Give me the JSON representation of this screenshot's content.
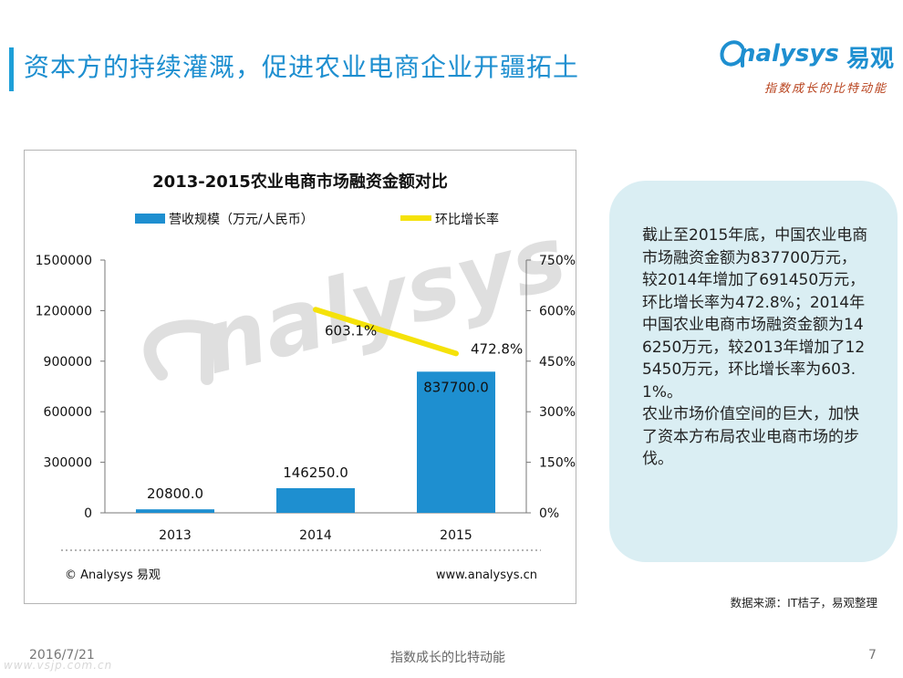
{
  "header": {
    "title": "资本方的持续灌溉，促进农业电商企业开疆拓土",
    "logo_word": "nalysys",
    "logo_cn": "易观",
    "logo_slogan": "指数成长的比特动能"
  },
  "chart_data": {
    "type": "bar",
    "title": "2013-2015农业电商市场融资金额对比",
    "categories": [
      "2013",
      "2014",
      "2015"
    ],
    "series": [
      {
        "name": "营收规模（万元/人民币）",
        "kind": "bar",
        "axis": "left",
        "values": [
          20800.0,
          146250.0,
          837700.0
        ],
        "labels": [
          "20800.0",
          "146250.0",
          "837700.0"
        ],
        "color": "#1e8fd0"
      },
      {
        "name": "环比增长率",
        "kind": "line",
        "axis": "right",
        "values": [
          null,
          603.1,
          472.8
        ],
        "labels": [
          "",
          "603.1%",
          "472.8%"
        ],
        "color": "#f5e20a"
      }
    ],
    "y_left": {
      "lim": [
        0,
        1500000
      ],
      "ticks": [
        "0",
        "300000",
        "600000",
        "900000",
        "1200000",
        "1500000"
      ]
    },
    "y_right": {
      "lim": [
        0,
        750
      ],
      "ticks": [
        "0%",
        "150%",
        "300%",
        "450%",
        "600%",
        "750%"
      ]
    },
    "legend_position": "top",
    "grid": false,
    "copyright": "© Analysys 易观",
    "website": "www.analysys.cn",
    "watermark": "nalysys"
  },
  "sidebar": {
    "note": "截止至2015年底，中国农业电商市场融资金额为837700万元，较2014年增加了691450万元，环比增长率为472.8%；2014年中国农业电商市场融资金额为146250万元，较2013年增加了125450万元，环比增长率为603.1%。\n农业市场价值空间的巨大，加快了资本方布局农业电商市场的步伐。"
  },
  "source": "数据来源：IT桔子，易观整理",
  "footer": {
    "date": "2016/7/21",
    "slogan": "指数成长的比特动能",
    "page": "7",
    "watermark_url": "www.vsjp.com.cn"
  },
  "colors": {
    "accent": "#1e8fd0",
    "line": "#f5e20a",
    "bubble": "#daeef3"
  }
}
